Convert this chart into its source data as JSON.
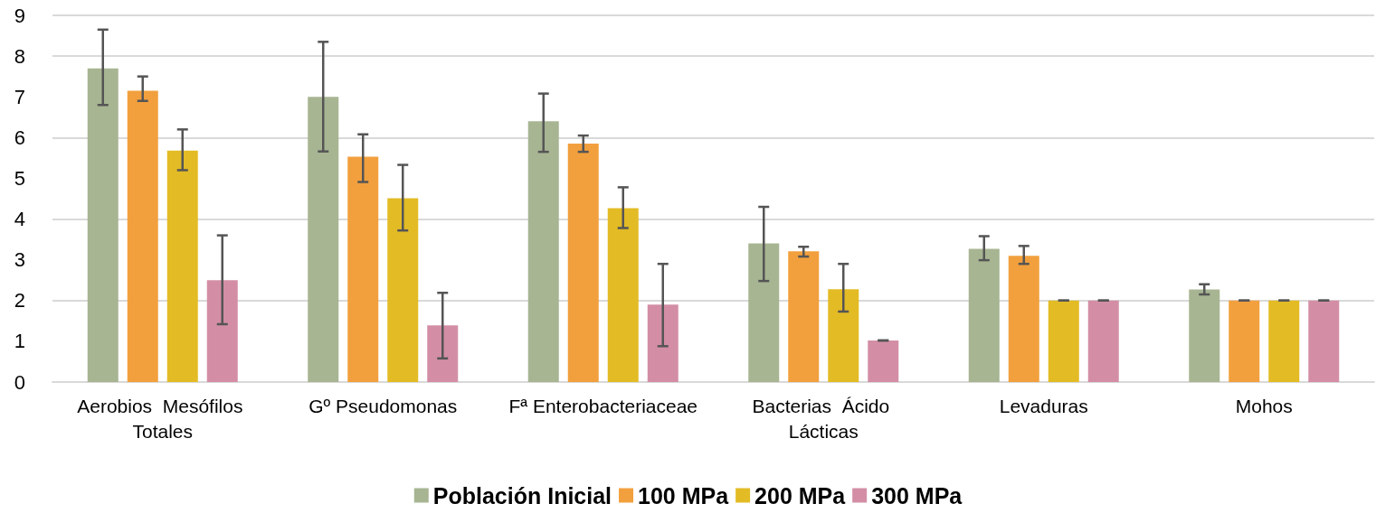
{
  "chart_data": {
    "type": "bar",
    "categories": [
      "Aerobios  Mesófilos Totales",
      "Gº Pseudomonas",
      "Fª Enterobacteriaceae",
      "Bacterias  Ácido Lácticas",
      "Levaduras",
      "Mohos"
    ],
    "series": [
      {
        "name": "Población Inicial",
        "color": "#a7b592",
        "values": [
          7.7,
          7.0,
          6.4,
          3.4,
          3.27,
          2.27
        ],
        "errors": [
          [
            6.8,
            8.65
          ],
          [
            5.66,
            8.35
          ],
          [
            5.65,
            7.08
          ],
          [
            2.48,
            4.3
          ],
          [
            2.99,
            3.58
          ],
          [
            2.15,
            2.4
          ]
        ]
      },
      {
        "name": "100 MPa",
        "color": "#f2a03d",
        "values": [
          7.15,
          5.53,
          5.85,
          3.21,
          3.1,
          2.0
        ],
        "errors": [
          [
            6.9,
            7.5
          ],
          [
            4.91,
            6.08
          ],
          [
            5.65,
            6.05
          ],
          [
            3.08,
            3.32
          ],
          [
            2.9,
            3.34
          ],
          0
        ]
      },
      {
        "name": "200 MPa",
        "color": "#e3bb25",
        "values": [
          5.68,
          4.51,
          4.27,
          2.28,
          2.0,
          2.0
        ],
        "errors": [
          [
            5.2,
            6.2
          ],
          [
            3.72,
            5.33
          ],
          [
            3.78,
            4.78
          ],
          [
            1.73,
            2.9
          ],
          0,
          0
        ]
      },
      {
        "name": "300 MPa",
        "color": "#d38ea5",
        "values": [
          2.5,
          1.39,
          1.9,
          1.02,
          2.0,
          2.0
        ],
        "errors": [
          [
            1.42,
            3.6
          ],
          [
            0.58,
            2.19
          ],
          [
            0.88,
            2.9
          ],
          0,
          0,
          0
        ]
      }
    ],
    "ylim": [
      0,
      9
    ],
    "yticks": [
      0,
      1,
      2,
      3,
      4,
      5,
      6,
      7,
      8,
      9
    ],
    "grid": "y",
    "legend": "bottom"
  }
}
